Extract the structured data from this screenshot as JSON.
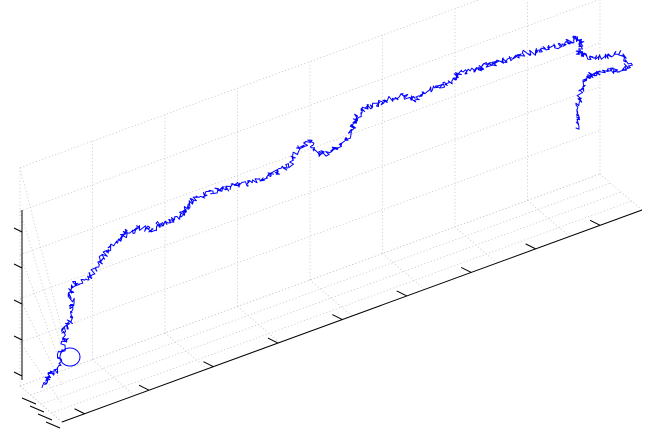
{
  "chart_data": {
    "type": "line3d",
    "title": "",
    "xlabel": "",
    "ylabel": "",
    "zlabel": "",
    "grid": true,
    "tick_labels_shown": false,
    "view": "oblique 3D",
    "x_tick_count": 9,
    "y_tick_count": 4,
    "z_tick_count": 5,
    "series": [
      {
        "color": "#0000ff",
        "style": "random-walk trajectory",
        "path_screen_trace": [
          [
            45,
            385
          ],
          [
            48,
            375
          ],
          [
            58,
            370
          ],
          [
            60,
            355
          ],
          [
            66,
            340
          ],
          [
            64,
            328
          ],
          [
            70,
            320
          ],
          [
            72,
            305
          ],
          [
            70,
            292
          ],
          [
            76,
            284
          ],
          [
            90,
            275
          ],
          [
            100,
            262
          ],
          [
            108,
            250
          ],
          [
            118,
            240
          ],
          [
            128,
            232
          ],
          [
            140,
            228
          ],
          [
            152,
            230
          ],
          [
            160,
            224
          ],
          [
            170,
            222
          ],
          [
            178,
            218
          ],
          [
            185,
            210
          ],
          [
            192,
            200
          ],
          [
            205,
            194
          ],
          [
            220,
            190
          ],
          [
            232,
            186
          ],
          [
            248,
            184
          ],
          [
            262,
            178
          ],
          [
            276,
            172
          ],
          [
            290,
            166
          ],
          [
            298,
            150
          ],
          [
            310,
            140
          ],
          [
            318,
            155
          ],
          [
            330,
            152
          ],
          [
            342,
            145
          ],
          [
            352,
            130
          ],
          [
            356,
            118
          ],
          [
            364,
            108
          ],
          [
            378,
            104
          ],
          [
            392,
            98
          ],
          [
            405,
            96
          ],
          [
            415,
            100
          ],
          [
            425,
            92
          ],
          [
            440,
            86
          ],
          [
            452,
            80
          ],
          [
            462,
            72
          ],
          [
            474,
            70
          ],
          [
            484,
            66
          ],
          [
            496,
            62
          ],
          [
            508,
            60
          ],
          [
            520,
            54
          ],
          [
            536,
            52
          ],
          [
            550,
            48
          ],
          [
            566,
            44
          ],
          [
            574,
            38
          ],
          [
            582,
            42
          ],
          [
            578,
            52
          ],
          [
            590,
            58
          ],
          [
            606,
            56
          ],
          [
            620,
            52
          ],
          [
            630,
            64
          ],
          [
            618,
            72
          ],
          [
            604,
            70
          ],
          [
            592,
            74
          ],
          [
            584,
            82
          ],
          [
            580,
            96
          ],
          [
            578,
            112
          ],
          [
            576,
            128
          ]
        ]
      }
    ]
  }
}
